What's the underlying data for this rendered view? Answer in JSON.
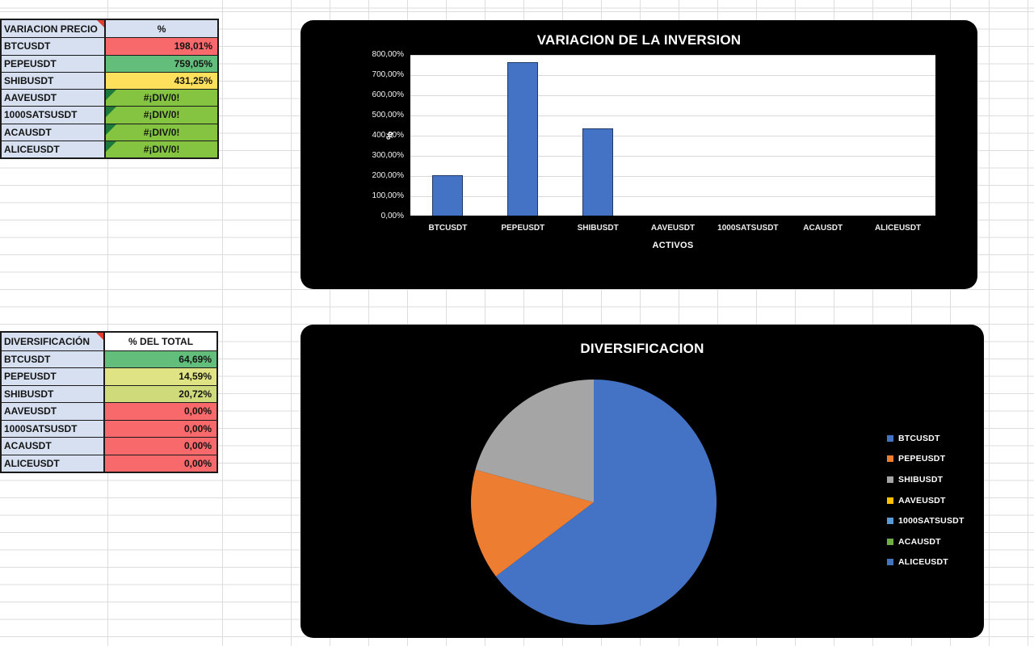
{
  "colors": {
    "bar_fill": "#4472C4",
    "chart_background": "#000000",
    "plot_background": "#FFFFFF",
    "cell_label_background": "#D6E0F0",
    "note_indicator_red": "#E53E30",
    "error_indicator_green": "#1D7A3C",
    "scale_red": "#F8696B",
    "scale_green": "#63BE7B",
    "scale_yellow": "#FFE05C"
  },
  "tables": [
    {
      "id": "variacion",
      "header": {
        "label": "VARIACION PRECIO",
        "value": "%",
        "note": true,
        "value_bg": "#D6E0F0"
      },
      "rows": [
        {
          "label": "BTCUSDT",
          "value": "198,01%",
          "value_bg": "#F8696B",
          "align": "right"
        },
        {
          "label": "PEPEUSDT",
          "value": "759,05%",
          "value_bg": "#63BE7B",
          "align": "right"
        },
        {
          "label": "SHIBUSDT",
          "value": "431,25%",
          "value_bg": "#FFE05C",
          "align": "right"
        },
        {
          "label": "AAVEUSDT",
          "value": "#¡DIV/0!",
          "value_bg": "#85C441",
          "align": "center",
          "error": true
        },
        {
          "label": "1000SATSUSDT",
          "value": "#¡DIV/0!",
          "value_bg": "#85C441",
          "align": "center",
          "error": true
        },
        {
          "label": "ACAUSDT",
          "value": "#¡DIV/0!",
          "value_bg": "#85C441",
          "align": "center",
          "error": true
        },
        {
          "label": "ALICEUSDT",
          "value": "#¡DIV/0!",
          "value_bg": "#85C441",
          "align": "center",
          "error": true
        }
      ]
    },
    {
      "id": "diversificacion",
      "header": {
        "label": "DIVERSIFICACIÓN",
        "value": "% DEL TOTAL",
        "note": true,
        "value_bg": "#FFFFFF"
      },
      "rows": [
        {
          "label": "BTCUSDT",
          "value": "64,69%",
          "value_bg": "#63BE7B",
          "align": "right"
        },
        {
          "label": "PEPEUSDT",
          "value": "14,59%",
          "value_bg": "#E0E383",
          "align": "right"
        },
        {
          "label": "SHIBUSDT",
          "value": "20,72%",
          "value_bg": "#CFDA7A",
          "align": "right"
        },
        {
          "label": "AAVEUSDT",
          "value": "0,00%",
          "value_bg": "#F8696B",
          "align": "right"
        },
        {
          "label": "1000SATSUSDT",
          "value": "0,00%",
          "value_bg": "#F8696B",
          "align": "right"
        },
        {
          "label": "ACAUSDT",
          "value": "0,00%",
          "value_bg": "#F8696B",
          "align": "right"
        },
        {
          "label": "ALICEUSDT",
          "value": "0,00%",
          "value_bg": "#F8696B",
          "align": "right"
        }
      ]
    }
  ],
  "chart_data": [
    {
      "type": "bar",
      "title": "VARIACION DE LA INVERSION",
      "categories": [
        "BTCUSDT",
        "PEPEUSDT",
        "SHIBUSDT",
        "AAVEUSDT",
        "1000SATSUSDT",
        "ACAUSDT",
        "ALICEUSDT"
      ],
      "values": [
        198.01,
        759.05,
        431.25,
        0,
        0,
        0,
        0
      ],
      "xlabel": "ACTIVOS",
      "ylabel": "%",
      "ylim": [
        0,
        800
      ],
      "ytick_labels": [
        "800,00%",
        "700,00%",
        "600,00%",
        "500,00%",
        "400,00%",
        "300,00%",
        "200,00%",
        "100,00%",
        "0,00%"
      ],
      "grid": true,
      "legend": "none",
      "bar_color": "#4472C4"
    },
    {
      "type": "pie",
      "title": "DIVERSIFICACION",
      "labels": [
        "BTCUSDT",
        "PEPEUSDT",
        "SHIBUSDT",
        "AAVEUSDT",
        "1000SATSUSDT",
        "ACAUSDT",
        "ALICEUSDT"
      ],
      "values": [
        64.69,
        14.59,
        20.72,
        0,
        0,
        0,
        0
      ],
      "colors": [
        "#4472C4",
        "#ED7D31",
        "#A5A5A5",
        "#FFC000",
        "#5B9BD5",
        "#70AD47",
        "#4472C4"
      ],
      "legend_position": "right",
      "start_angle_deg": 0,
      "direction": "clockwise"
    }
  ]
}
